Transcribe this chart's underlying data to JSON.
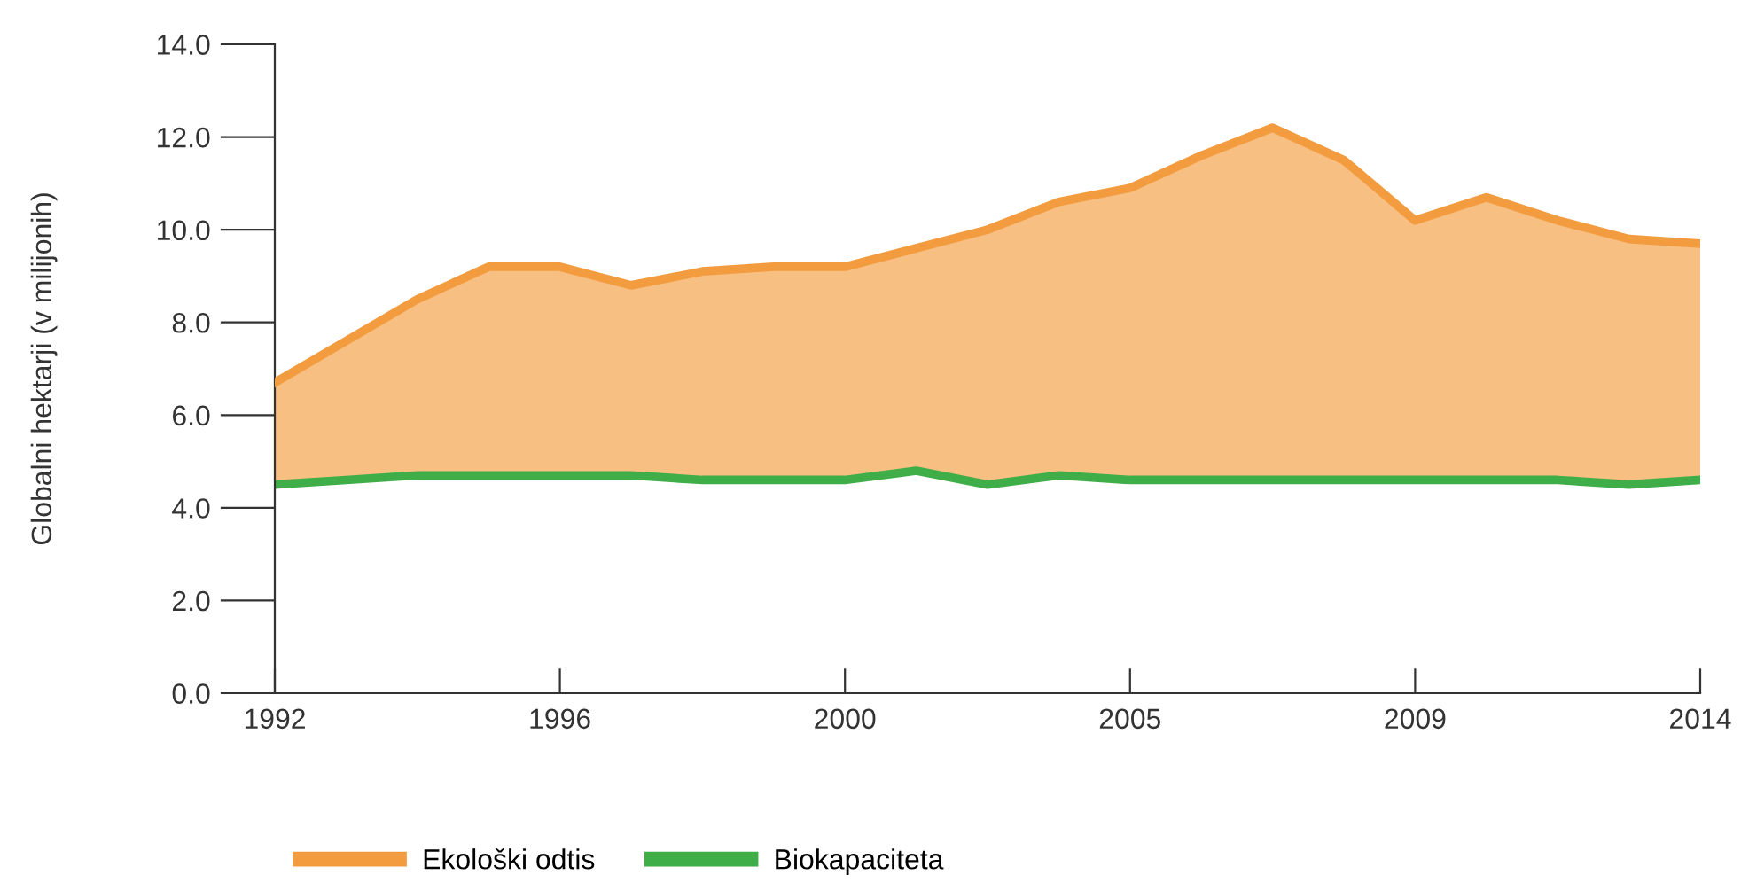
{
  "chart_data": {
    "type": "area",
    "ylabel": "Globalni hektarji (v milijonih)",
    "categories": [
      "1992",
      null,
      null,
      null,
      "1996",
      null,
      null,
      null,
      "2000",
      null,
      null,
      null,
      "2005",
      null,
      null,
      null,
      "2009",
      null,
      null,
      null,
      "2014"
    ],
    "series": [
      {
        "name": "Ekološki odtis",
        "color": "#f39c3f",
        "values": [
          6.7,
          7.6,
          8.5,
          9.2,
          9.2,
          8.8,
          9.1,
          9.2,
          9.2,
          9.6,
          10.0,
          10.6,
          10.9,
          11.6,
          12.2,
          11.5,
          10.2,
          10.7,
          10.2,
          9.8,
          9.7
        ]
      },
      {
        "name": "Biokapaciteta",
        "type": "line",
        "color": "#3fae49",
        "values": [
          4.5,
          4.6,
          4.7,
          4.7,
          4.7,
          4.7,
          4.6,
          4.6,
          4.6,
          4.8,
          4.5,
          4.7,
          4.6,
          4.6,
          4.6,
          4.6,
          4.6,
          4.6,
          4.6,
          4.5,
          4.6
        ]
      }
    ],
    "ylim": [
      0,
      14
    ],
    "yticks": [
      {
        "value": 0,
        "label": "0.0"
      },
      {
        "value": 2,
        "label": "2.0"
      },
      {
        "value": 4,
        "label": "4.0"
      },
      {
        "value": 6,
        "label": "6.0"
      },
      {
        "value": 8,
        "label": "8.0"
      },
      {
        "value": 10,
        "label": "10.0"
      },
      {
        "value": 12,
        "label": "12.0"
      },
      {
        "value": 14,
        "label": "14.0"
      }
    ],
    "grid": false,
    "legend": "bottom left"
  }
}
